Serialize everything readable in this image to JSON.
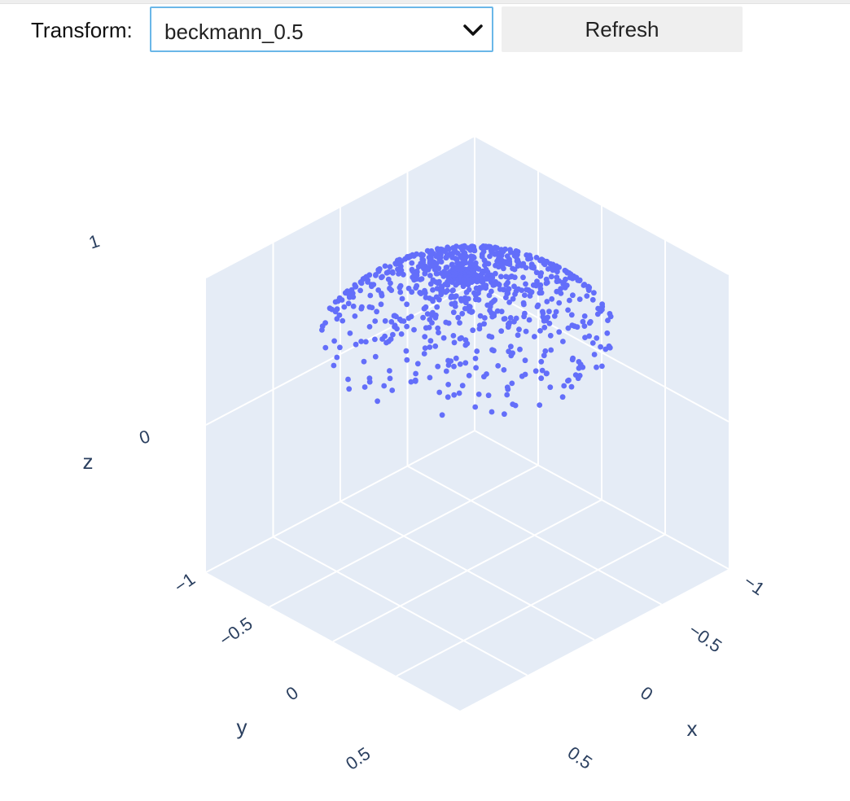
{
  "controls": {
    "transform_label": "Transform:",
    "transform_value": "beckmann_0.5",
    "refresh_label": "Refresh"
  },
  "chart_data": {
    "type": "scatter",
    "dimensions": 3,
    "title": "",
    "xlabel": "x",
    "ylabel": "y",
    "zlabel": "z",
    "xlim": [
      -1,
      1
    ],
    "ylim": [
      -1,
      1
    ],
    "zlim": [
      -1,
      1
    ],
    "x_ticks": [
      "−1",
      "−0.5",
      "0",
      "0.5"
    ],
    "y_ticks": [
      "−1",
      "−0.5",
      "0",
      "0.5"
    ],
    "z_ticks": [
      "0",
      "1"
    ],
    "grid": true,
    "marker_color": "#636efa",
    "background_color": "#e5ecf6",
    "grid_color": "#ffffff",
    "point_count": 900,
    "distribution": "points on the unit upper hemisphere, concentrated near the pole (beckmann_0.5)"
  }
}
